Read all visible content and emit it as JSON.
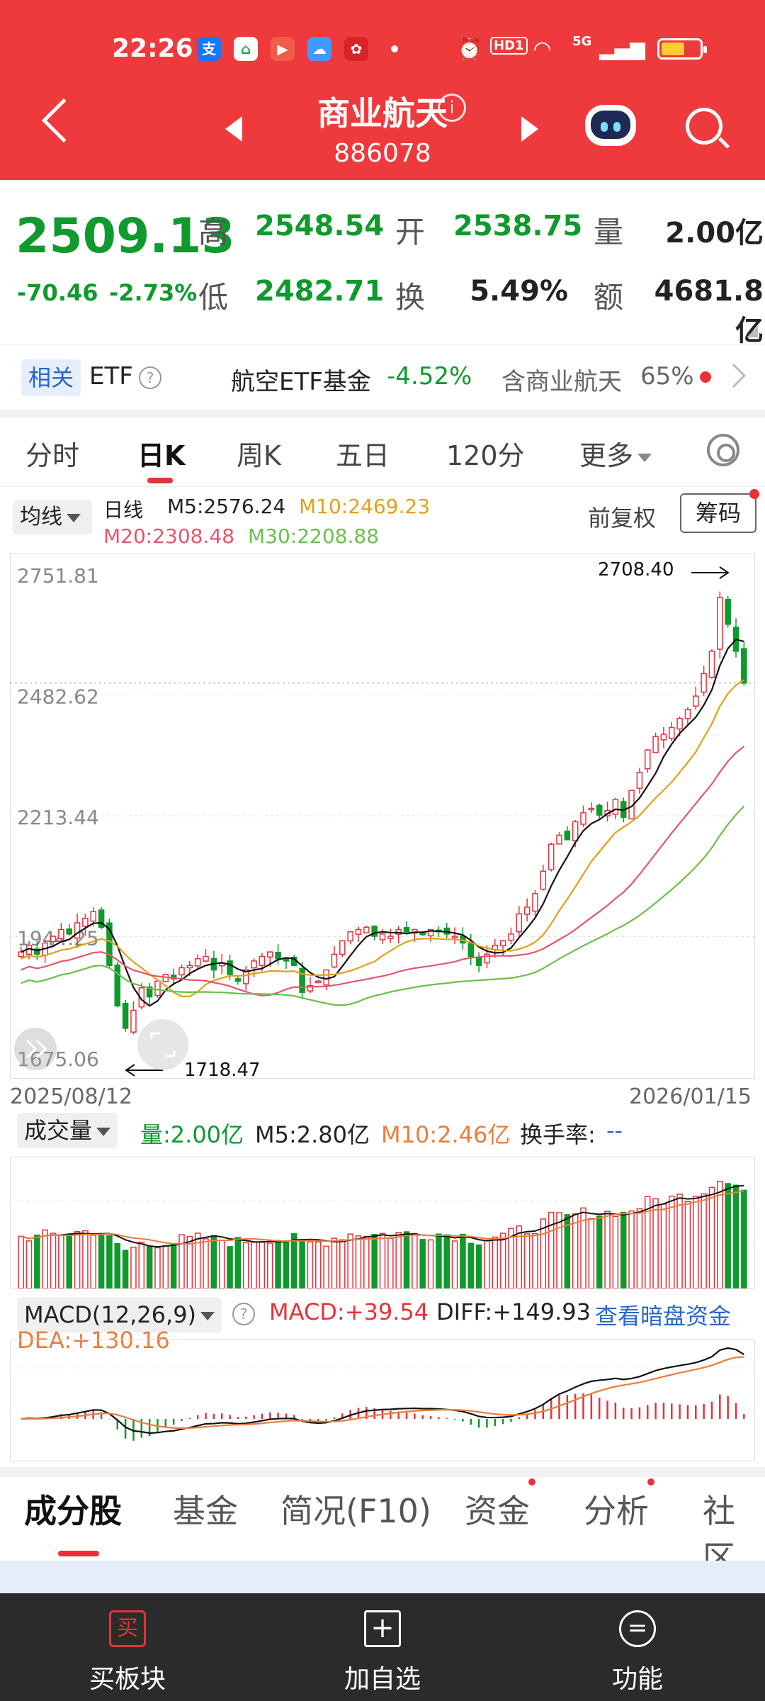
{
  "status_bar": {
    "time": "22:26",
    "network": "5G",
    "hd": "HD1"
  },
  "header": {
    "title": "商业航天",
    "code": "886078"
  },
  "quote": {
    "price": "2509.13",
    "change": "-70.46",
    "change_pct": "-2.73%",
    "high_label": "高",
    "high": "2548.54",
    "open_label": "开",
    "open": "2538.75",
    "volume_label": "量",
    "volume": "2.00亿",
    "low_label": "低",
    "low": "2482.71",
    "turnover_label": "换",
    "turnover": "5.49%",
    "amount_label": "额",
    "amount": "4681.8亿"
  },
  "etf": {
    "tag": "相关",
    "label": "ETF",
    "name": "航空ETF基金",
    "change": "-4.52%",
    "contains": "含商业航天",
    "weight": "65%"
  },
  "kline_tabs": [
    {
      "label": "分时"
    },
    {
      "label": "日K"
    },
    {
      "label": "周K"
    },
    {
      "label": "五日"
    },
    {
      "label": "120分"
    },
    {
      "label": "更多"
    }
  ],
  "ma_legend": {
    "selector": "均线",
    "period": "日线",
    "m5": "M5:2576.24",
    "m10": "M10:2469.23",
    "m20": "M20:2308.48",
    "m30": "M30:2208.88",
    "adjust": "前复权",
    "chips": "筹码"
  },
  "kchart": {
    "y_labels": [
      "2751.81",
      "2482.62",
      "2213.44",
      "1944.25",
      "1675.06"
    ],
    "high_mark": "2708.40",
    "low_mark": "1718.47",
    "start_date": "2025/08/12",
    "end_date": "2026/01/15"
  },
  "volume_legend": {
    "selector": "成交量",
    "vol": "量:2.00亿",
    "m5": "M5:2.80亿",
    "m10": "M10:2.46亿",
    "turnover": "换手率:",
    "turnover_val": "--"
  },
  "macd_legend": {
    "selector": "MACD(12,26,9)",
    "macd": "MACD:+39.54",
    "diff": "DIFF:+149.93",
    "dea": "DEA:+130.16",
    "link": "查看暗盘资金"
  },
  "bottom_tabs": [
    {
      "label": "成分股"
    },
    {
      "label": "基金"
    },
    {
      "label": "简况(F10)"
    },
    {
      "label": "资金"
    },
    {
      "label": "分析"
    },
    {
      "label": "社区"
    }
  ],
  "bottom_bar": [
    {
      "label": "买板块",
      "icon": "买"
    },
    {
      "label": "加自选",
      "icon": "+"
    },
    {
      "label": "功能",
      "icon": "="
    }
  ],
  "colors": {
    "up": "#e8313a",
    "down": "#0e9a2c",
    "header": "#ee3a3c",
    "ma5": "#111111",
    "ma10": "#e2a019",
    "ma20": "#e8546c",
    "ma30": "#6ac04a",
    "dea": "#ef7b3a"
  },
  "chart_data": {
    "type": "candlestick",
    "y_range": [
      1675.06,
      2751.81
    ],
    "series_close_approx": [
      1910,
      1925,
      1905,
      1930,
      1945,
      1960,
      1950,
      1975,
      1985,
      2000,
      1965,
      1880,
      1790,
      1740,
      1780,
      1830,
      1810,
      1845,
      1860,
      1850,
      1875,
      1880,
      1895,
      1900,
      1870,
      1885,
      1860,
      1845,
      1870,
      1890,
      1900,
      1910,
      1895,
      1890,
      1880,
      1820,
      1835,
      1845,
      1870,
      1905,
      1935,
      1955,
      1960,
      1965,
      1945,
      1950,
      1945,
      1960,
      1955,
      1960,
      1950,
      1960,
      1955,
      1950,
      1945,
      1930,
      1900,
      1880,
      1905,
      1925,
      1935,
      1950,
      1995,
      2010,
      2040,
      2090,
      2150,
      2170,
      2160,
      2200,
      2220,
      2230,
      2215,
      2225,
      2250,
      2210,
      2270,
      2310,
      2360,
      2390,
      2395,
      2410,
      2430,
      2450,
      2480,
      2530,
      2580,
      2700,
      2640,
      2580,
      2509
    ]
  }
}
